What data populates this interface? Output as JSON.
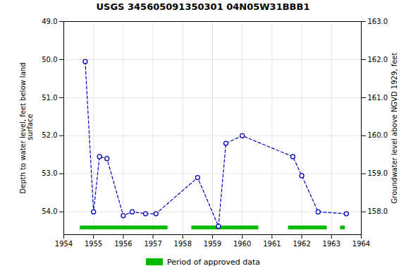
{
  "chart_data": {
    "type": "line",
    "title": "USGS 345605091350301 04N05W31BBB1",
    "x": [
      1954.72,
      1955.0,
      1955.2,
      1955.45,
      1956.0,
      1956.3,
      1956.75,
      1957.1,
      1958.5,
      1959.2,
      1959.45,
      1960.0,
      1961.7,
      1962.0,
      1962.55,
      1963.5
    ],
    "values": [
      50.05,
      54.0,
      52.55,
      52.6,
      54.1,
      54.0,
      54.05,
      54.05,
      53.1,
      54.38,
      52.2,
      52.0,
      52.55,
      53.05,
      54.0,
      54.05
    ],
    "color": "#0000bb",
    "marker": "circle",
    "line_style": "dashed",
    "xlim": [
      1954,
      1964
    ],
    "xticks": [
      1954,
      1955,
      1956,
      1957,
      1958,
      1959,
      1960,
      1961,
      1962,
      1963,
      1964
    ],
    "ylim": [
      54.6,
      49.0
    ],
    "yticks": [
      {
        "value": 49.0,
        "label": "49.0"
      },
      {
        "value": 50.0,
        "label": "50.0"
      },
      {
        "value": 51.0,
        "label": "51.0"
      },
      {
        "value": 52.0,
        "label": "52.0"
      },
      {
        "value": 53.0,
        "label": "53.0"
      },
      {
        "value": 54.0,
        "label": "54.0"
      }
    ],
    "ylabel": "Depth to water level, feet below land\n surface",
    "y2lim": [
      157.4,
      163.0
    ],
    "y2ticks": [
      {
        "value": 163.0,
        "label": "163.0"
      },
      {
        "value": 162.0,
        "label": "162.0"
      },
      {
        "value": 161.0,
        "label": "161.0"
      },
      {
        "value": 160.0,
        "label": "160.0"
      },
      {
        "value": 159.0,
        "label": "159.0"
      },
      {
        "value": 158.0,
        "label": "158.0"
      }
    ],
    "y2label": "Groundwater level above NGVD 1929, feet",
    "grid": true,
    "legend": "bottom",
    "approved_periods": {
      "name": "Period of approved data",
      "color": "#00bb00",
      "periods": [
        [
          1954.55,
          1957.5
        ],
        [
          1958.3,
          1960.55
        ],
        [
          1961.55,
          1962.85
        ],
        [
          1963.3,
          1963.46
        ]
      ],
      "y": 54.42,
      "height": 0.1
    }
  }
}
